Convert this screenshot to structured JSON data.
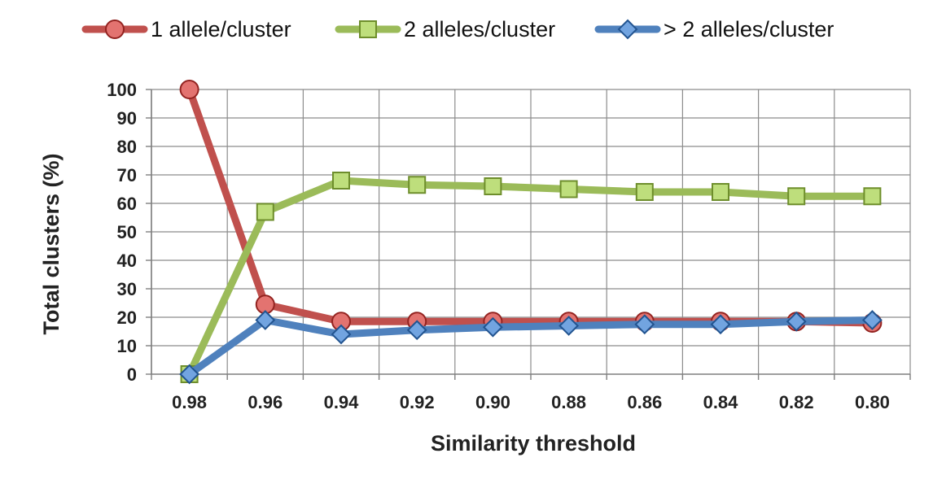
{
  "chart_data": {
    "type": "line",
    "title": "",
    "xlabel": "Similarity threshold",
    "ylabel": "Total clusters (%)",
    "categories": [
      "0.98",
      "0.96",
      "0.94",
      "0.92",
      "0.90",
      "0.88",
      "0.86",
      "0.84",
      "0.82",
      "0.80"
    ],
    "yticks": [
      "0",
      "10",
      "20",
      "30",
      "40",
      "50",
      "60",
      "70",
      "80",
      "90",
      "100"
    ],
    "ylim": [
      0,
      100
    ],
    "grid": true,
    "legend_position": "top",
    "series": [
      {
        "name": "1 allele/cluster",
        "color": "#c0504d",
        "marker": "circle",
        "values": [
          100,
          24.5,
          18.5,
          18.5,
          18.5,
          18.5,
          18.5,
          18.5,
          18.5,
          18.0
        ]
      },
      {
        "name": "2 alleles/cluster",
        "color": "#9bbb59",
        "marker": "square",
        "values": [
          0,
          57,
          68,
          66.5,
          66,
          65,
          64,
          64,
          62.5,
          62.5
        ]
      },
      {
        "name": "> 2 alleles/cluster",
        "color": "#4f81bd",
        "marker": "diamond",
        "values": [
          0,
          19,
          14,
          15.5,
          16.5,
          17,
          17.5,
          17.5,
          18.5,
          19
        ]
      }
    ]
  }
}
